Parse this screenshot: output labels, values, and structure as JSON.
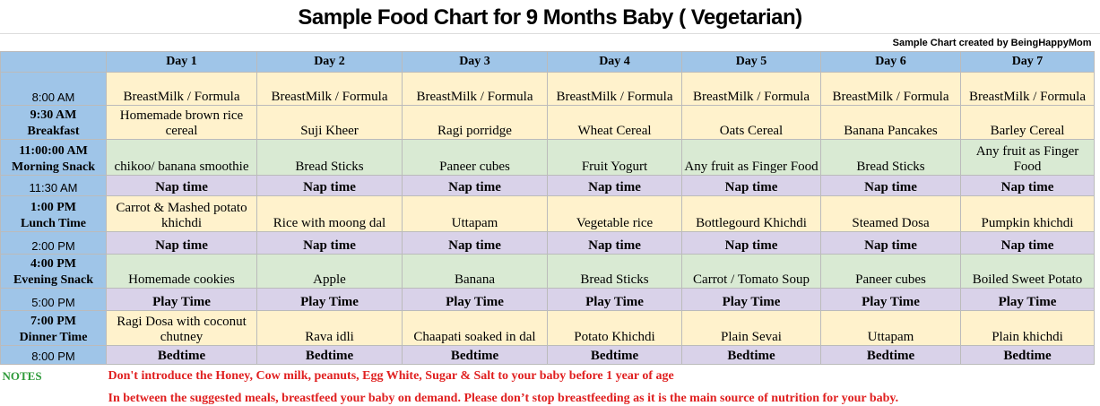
{
  "title": "Sample Food Chart for 9 Months Baby  ( Vegetarian)",
  "credit": "Sample Chart created by BeingHappyMom",
  "header": {
    "color": "#9fc5e8",
    "days": [
      "Day 1",
      "Day 2",
      "Day 3",
      "Day 4",
      "Day 5",
      "Day 6",
      "Day 7"
    ]
  },
  "time_color": "#9fc5e8",
  "rows": [
    {
      "time": "8:00 AM",
      "color": "#fff2cc",
      "cells": [
        "BreastMilk / Formula",
        "BreastMilk / Formula",
        "BreastMilk / Formula",
        "BreastMilk / Formula",
        "BreastMilk / Formula",
        "BreastMilk / Formula",
        "BreastMilk / Formula"
      ]
    },
    {
      "time": "9:30 AM",
      "label": "Breakfast",
      "color": "#fff2cc",
      "cells": [
        "Homemade brown rice cereal",
        "Suji Kheer",
        "Ragi porridge",
        "Wheat Cereal",
        "Oats Cereal",
        "Banana Pancakes",
        "Barley Cereal"
      ]
    },
    {
      "time": "11:00:00 AM",
      "label": "Morning Snack",
      "color": "#d9ead3",
      "cells": [
        "chikoo/ banana smoothie",
        "Bread Sticks",
        "Paneer cubes",
        "Fruit Yogurt",
        "Any fruit as Finger Food",
        "Bread Sticks",
        "Any fruit as Finger Food"
      ]
    },
    {
      "time": "11:30 AM",
      "color": "#d9d2e9",
      "bold": true,
      "cells": [
        "Nap time",
        "Nap time",
        "Nap time",
        "Nap time",
        "Nap time",
        "Nap time",
        "Nap time"
      ]
    },
    {
      "time": "1:00 PM",
      "label": "Lunch Time",
      "color": "#fff2cc",
      "cells": [
        "Carrot & Mashed potato khichdi",
        "Rice with moong dal",
        "Uttapam",
        "Vegetable rice",
        "Bottlegourd Khichdi",
        "Steamed Dosa",
        "Pumpkin khichdi"
      ]
    },
    {
      "time": "2:00 PM",
      "color": "#d9d2e9",
      "bold": true,
      "cells": [
        "Nap time",
        "Nap time",
        "Nap time",
        "Nap time",
        "Nap time",
        "Nap time",
        "Nap time"
      ]
    },
    {
      "time": "4:00 PM",
      "label": "Evening Snack",
      "color": "#d9ead3",
      "cells": [
        "Homemade cookies",
        "Apple",
        "Banana",
        "Bread Sticks",
        "Carrot / Tomato Soup",
        "Paneer cubes",
        "Boiled Sweet Potato"
      ]
    },
    {
      "time": "5:00 PM",
      "color": "#d9d2e9",
      "bold": true,
      "cells": [
        "Play Time",
        "Play Time",
        "Play Time",
        "Play Time",
        "Play Time",
        "Play Time",
        "Play Time"
      ]
    },
    {
      "time": "7:00 PM",
      "label": "Dinner Time",
      "color": "#fff2cc",
      "cells": [
        "Ragi Dosa with coconut chutney",
        "Rava idli",
        "Chaapati soaked in dal",
        "Potato Khichdi",
        "Plain Sevai",
        "Uttapam",
        "Plain khichdi"
      ]
    },
    {
      "time": "8:00 PM",
      "color": "#d9d2e9",
      "bold": true,
      "cells": [
        "Bedtime",
        "Bedtime",
        "Bedtime",
        "Bedtime",
        "Bedtime",
        "Bedtime",
        "Bedtime"
      ]
    }
  ],
  "notes": {
    "label": "NOTES",
    "items": [
      "Don't introduce the Honey, Cow milk, peanuts, Egg White, Sugar & Salt to your baby before 1 year of age",
      "In between the suggested meals, breastfeed your baby on demand. Please don’t stop breastfeeding as it is the main source of nutrition for your baby."
    ]
  }
}
